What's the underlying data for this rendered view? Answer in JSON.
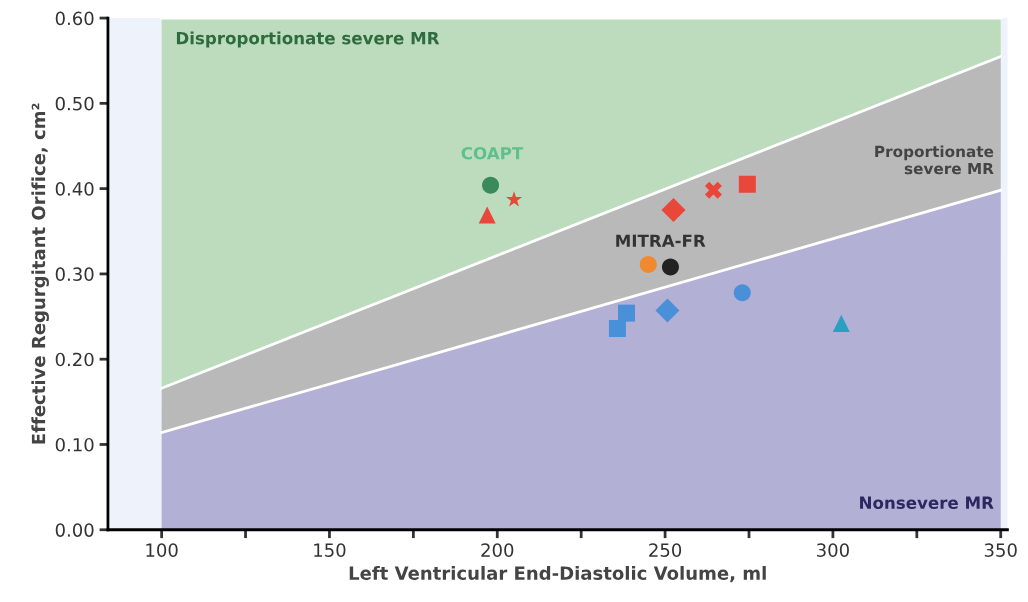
{
  "chart_data": {
    "type": "scatter",
    "xlabel": "Left Ventricular End-Diastolic Volume, ml",
    "ylabel": "Effective Regurgitant Orifice, cm²",
    "xlim": [
      84,
      352
    ],
    "ylim": [
      0,
      0.6
    ],
    "xticks": [
      100,
      {
        "value": 125,
        "label": null
      },
      150,
      {
        "value": 175,
        "label": null
      },
      200,
      {
        "value": 225,
        "label": null
      },
      250,
      {
        "value": 275,
        "label": null
      },
      300,
      {
        "value": 325,
        "label": null
      },
      350
    ],
    "yticks": [
      {
        "value": 0,
        "label": "0.00"
      },
      {
        "value": 0.1,
        "label": "0.10"
      },
      {
        "value": 0.2,
        "label": "0.20"
      },
      {
        "value": 0.3,
        "label": "0.30"
      },
      {
        "value": 0.4,
        "label": "0.40"
      },
      {
        "value": 0.5,
        "label": "0.50"
      },
      {
        "value": 0.6,
        "label": "0.60"
      }
    ],
    "grid": false,
    "legend": false,
    "stacked": true,
    "series": [
      {
        "type": "area",
        "x": [
          100,
          350
        ],
        "values": [
          0.114,
          0.398
        ],
        "color": "#b3b0d5"
      },
      {
        "type": "area",
        "x": [
          100,
          350
        ],
        "values": [
          0.052,
          0.157
        ],
        "color": "#b9b9b9"
      },
      {
        "type": "area",
        "x": [
          100,
          350
        ],
        "values": [
          0.434,
          0.045
        ],
        "color": "#bddcbd"
      },
      {
        "x": [
          198
        ],
        "values": [
          0.404
        ],
        "color": "#3a8a5a",
        "marker": "circle"
      },
      {
        "x": [
          197
        ],
        "values": [
          0.369
        ],
        "color": "#e8473a",
        "marker": "triangle"
      },
      {
        "x": [
          205
        ],
        "values": [
          0.387
        ],
        "color": "#e8473a",
        "marker": "star"
      },
      {
        "x": [
          252.5
        ],
        "values": [
          0.375
        ],
        "color": "#e8473a",
        "marker": "diamond"
      },
      {
        "x": [
          264.4
        ],
        "values": [
          0.398
        ],
        "color": "#e8473a",
        "marker": "cross"
      },
      {
        "x": [
          274.5
        ],
        "values": [
          0.405
        ],
        "color": "#e8473a",
        "marker": "square"
      },
      {
        "x": [
          245
        ],
        "values": [
          0.311
        ],
        "color": "#f08a30",
        "marker": "circle"
      },
      {
        "x": [
          251.6
        ],
        "values": [
          0.308
        ],
        "color": "#222222",
        "marker": "circle"
      },
      {
        "x": [
          238.5
        ],
        "values": [
          0.254
        ],
        "color": "#4a90d8",
        "marker": "square"
      },
      {
        "x": [
          235.8
        ],
        "values": [
          0.236
        ],
        "color": "#4a90d8",
        "marker": "square"
      },
      {
        "x": [
          250.7
        ],
        "values": [
          0.257
        ],
        "color": "#4a90d8",
        "marker": "diamond"
      },
      {
        "x": [
          273
        ],
        "values": [
          0.278
        ],
        "color": "#4a90d8",
        "marker": "circle"
      },
      {
        "x": [
          302.5
        ],
        "values": [
          0.242
        ],
        "color": "#2aa0c0",
        "marker": "triangle"
      }
    ],
    "annotations": [
      "Disproportionate severe MR",
      "Proportionate\nsevere MR",
      "Nonsevere MR",
      "COAPT",
      "MITRA-FR"
    ]
  }
}
